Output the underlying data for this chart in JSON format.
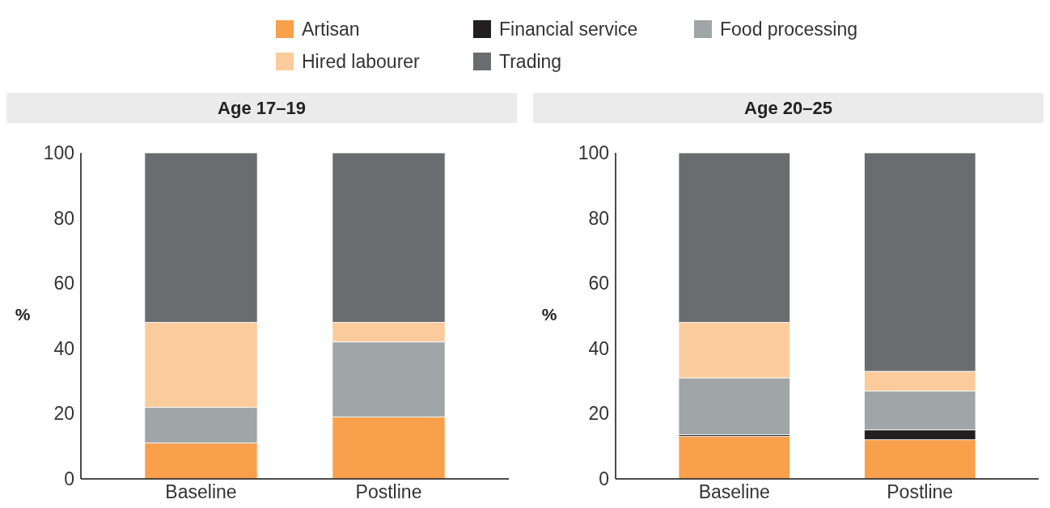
{
  "chart_data": [
    {
      "type": "bar",
      "title": "Age 17–19",
      "ylabel": "%",
      "categories": [
        "Baseline",
        "Postline"
      ],
      "stacked": true,
      "ylim": [
        0,
        100
      ],
      "yticks": [
        0,
        20,
        40,
        60,
        80,
        100
      ],
      "legend": "top",
      "grid": false,
      "series": [
        {
          "name": "Artisan",
          "color": "#f8a04c",
          "values": [
            11,
            19
          ]
        },
        {
          "name": "Financial service",
          "color": "#231f20",
          "values": [
            0,
            0
          ]
        },
        {
          "name": "Food processing",
          "color": "#9fa6a7",
          "values": [
            11,
            23
          ]
        },
        {
          "name": "Hired labourer",
          "color": "#fbcb9c",
          "values": [
            26,
            6
          ]
        },
        {
          "name": "Trading",
          "color": "#6b6c70",
          "values": [
            52,
            52
          ]
        }
      ]
    },
    {
      "type": "bar",
      "title": "Age 20–25",
      "ylabel": "%",
      "categories": [
        "Baseline",
        "Postline"
      ],
      "stacked": true,
      "ylim": [
        0,
        100
      ],
      "yticks": [
        0,
        20,
        40,
        60,
        80,
        100
      ],
      "grid": false,
      "series": [
        {
          "color": "#f8a04c",
          "values": [
            13,
            12
          ]
        },
        {
          "color": "#231f20",
          "values": [
            0.5,
            3
          ]
        },
        {
          "color": "#9fa6a7",
          "values": [
            17.5,
            12
          ]
        },
        {
          "color": "#fbcb9c",
          "values": [
            17,
            6
          ]
        },
        {
          "color": "#6b6c70",
          "values": [
            52,
            67
          ]
        }
      ]
    }
  ]
}
